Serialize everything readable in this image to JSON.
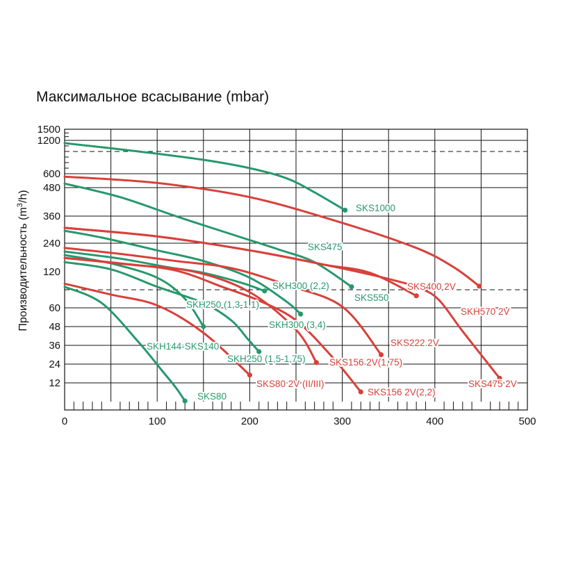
{
  "chart_data": {
    "type": "line",
    "title": "Максимальное всасывание (mbar)",
    "xlabel": "",
    "ylabel": "Производительность (m³/h)",
    "ylabel_main": "Производительность (m",
    "ylabel_sup": "3",
    "ylabel_tail": "/h)",
    "xlim": [
      0,
      500
    ],
    "x_ticks": [
      0,
      100,
      200,
      300,
      400,
      500
    ],
    "x_tick_labels": [
      "0",
      "100",
      "200",
      "300",
      "400",
      "500"
    ],
    "y_ticks": [
      12,
      24,
      36,
      48,
      60,
      120,
      240,
      360,
      480,
      600,
      1200,
      1500
    ],
    "y_tick_labels": [
      "12",
      "24",
      "36",
      "48",
      "60",
      "120",
      "240",
      "360",
      "480",
      "600",
      "1200",
      "1500"
    ],
    "grid": true,
    "colors": {
      "green": "#27986e",
      "red": "#d8403a",
      "grid": "#111111"
    },
    "series": [
      {
        "name": "SKS1000",
        "color": "green",
        "points": [
          [
            0,
            1150
          ],
          [
            80,
            1000
          ],
          [
            150,
            850
          ],
          [
            200,
            700
          ],
          [
            240,
            560
          ],
          [
            270,
            460
          ],
          [
            303,
            385
          ]
        ]
      },
      {
        "name": "SKS550",
        "color": "green",
        "points": [
          [
            0,
            515
          ],
          [
            60,
            440
          ],
          [
            120,
            360
          ],
          [
            180,
            280
          ],
          [
            230,
            215
          ],
          [
            270,
            160
          ],
          [
            310,
            95
          ]
        ]
      },
      {
        "name": "SKH300 (3,4)",
        "color": "green",
        "points": [
          [
            0,
            295
          ],
          [
            40,
            265
          ],
          [
            100,
            210
          ],
          [
            150,
            165
          ],
          [
            200,
            110
          ],
          [
            240,
            70
          ],
          [
            255,
            56
          ]
        ]
      },
      {
        "name": "SKH300 (2,2)",
        "color": "green",
        "points": [
          [
            0,
            205
          ],
          [
            60,
            175
          ],
          [
            110,
            140
          ],
          [
            150,
            118
          ],
          [
            190,
            102
          ],
          [
            216,
            88
          ]
        ]
      },
      {
        "name": "SKH250 (1,3-1,1)",
        "color": "green",
        "points": [
          [
            0,
            190
          ],
          [
            50,
            155
          ],
          [
            100,
            110
          ],
          [
            130,
            75
          ],
          [
            150,
            48
          ]
        ]
      },
      {
        "name": "SKH250 (1,5-1,75)",
        "color": "green",
        "points": [
          [
            0,
            160
          ],
          [
            50,
            130
          ],
          [
            100,
            95
          ],
          [
            150,
            68
          ],
          [
            180,
            52
          ],
          [
            198,
            40
          ],
          [
            210,
            32
          ]
        ]
      },
      {
        "name": "SKS80",
        "color": "green",
        "points": [
          [
            0,
            95
          ],
          [
            40,
            68
          ],
          [
            80,
            38
          ],
          [
            105,
            20
          ],
          [
            120,
            10
          ],
          [
            130,
            4
          ]
        ]
      },
      {
        "name": "SKH570 2V",
        "color": "red",
        "points": [
          [
            0,
            575
          ],
          [
            100,
            520
          ],
          [
            200,
            440
          ],
          [
            300,
            330
          ],
          [
            380,
            220
          ],
          [
            420,
            140
          ],
          [
            448,
            96
          ]
        ]
      },
      {
        "name": "SKS400 2V",
        "color": "red",
        "points": [
          [
            0,
            308
          ],
          [
            100,
            270
          ],
          [
            200,
            210
          ],
          [
            280,
            150
          ],
          [
            330,
            118
          ],
          [
            380,
            80
          ]
        ]
      },
      {
        "name": "SKS475 2V",
        "color": "red",
        "points": [
          [
            0,
            308
          ],
          [
            100,
            270
          ],
          [
            200,
            210
          ],
          [
            280,
            150
          ],
          [
            350,
            108
          ],
          [
            385,
            92
          ],
          [
            405,
            72
          ],
          [
            430,
            45
          ],
          [
            470,
            15
          ]
        ]
      },
      {
        "name": "SKS222 2V",
        "color": "red",
        "points": [
          [
            0,
            220
          ],
          [
            60,
            195
          ],
          [
            120,
            165
          ],
          [
            180,
            135
          ],
          [
            240,
            98
          ],
          [
            300,
            62
          ],
          [
            342,
            30
          ]
        ]
      },
      {
        "name": "SKS156 2V(1,75)",
        "color": "red",
        "points": [
          [
            0,
            178
          ],
          [
            70,
            150
          ],
          [
            140,
            120
          ],
          [
            200,
            86
          ],
          [
            250,
            46
          ],
          [
            272,
            25
          ]
        ]
      },
      {
        "name": "SKS156 2V(2,2)",
        "color": "red",
        "points": [
          [
            0,
            178
          ],
          [
            60,
            155
          ],
          [
            120,
            125
          ],
          [
            170,
            95
          ],
          [
            210,
            72
          ],
          [
            250,
            52
          ],
          [
            290,
            28
          ],
          [
            320,
            8
          ]
        ]
      },
      {
        "name": "SKS80 2V (II/III)",
        "color": "red",
        "points": [
          [
            0,
            100
          ],
          [
            50,
            82
          ],
          [
            100,
            64
          ],
          [
            150,
            44
          ],
          [
            200,
            17
          ]
        ]
      }
    ],
    "labels": [
      {
        "text": "SKS1000",
        "color": "green"
      },
      {
        "text": "SKS475",
        "color": "green"
      },
      {
        "text": "SKH300 (2,2)",
        "color": "green"
      },
      {
        "text": "SKS550",
        "color": "green"
      },
      {
        "text": "SKH250 (1,3-1,1)",
        "color": "green"
      },
      {
        "text": "SKH300 (3,4)",
        "color": "green"
      },
      {
        "text": "SKH144-SKS140",
        "color": "green"
      },
      {
        "text": "SKH250 (1,5-1,75)",
        "color": "green"
      },
      {
        "text": "SKS80",
        "color": "green"
      },
      {
        "text": "SKS400 2V",
        "color": "red"
      },
      {
        "text": "SKH570 2V",
        "color": "red"
      },
      {
        "text": "SKS222 2V",
        "color": "red"
      },
      {
        "text": "SKS156 2V(1,75)",
        "color": "red"
      },
      {
        "text": "SKS80 2V (II/III)",
        "color": "red"
      },
      {
        "text": "SKS156 2V(2,2)",
        "color": "red"
      },
      {
        "text": "SKS475 2V",
        "color": "red"
      }
    ]
  }
}
